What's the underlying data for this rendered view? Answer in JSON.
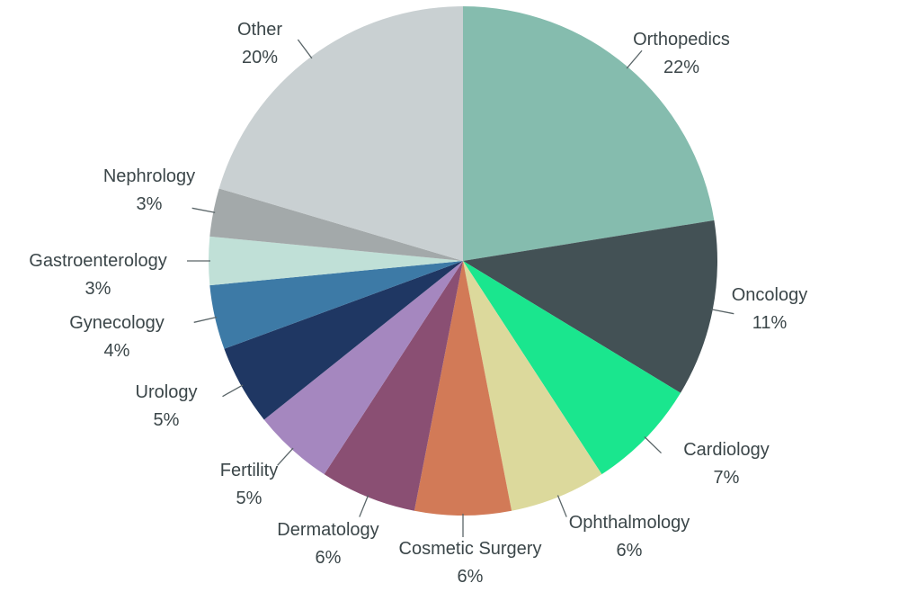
{
  "chart_data": {
    "type": "pie",
    "start": "top",
    "direction": "clockwise",
    "slices": [
      {
        "label": "Orthopedics",
        "value": 22,
        "value_label": "22%",
        "color": "#85bcae"
      },
      {
        "label": "Oncology",
        "value": 11,
        "value_label": "11%",
        "color": "#435155"
      },
      {
        "label": "Cardiology",
        "value": 7,
        "value_label": "7%",
        "color": "#1ae68e"
      },
      {
        "label": "Ophthalmology",
        "value": 6,
        "value_label": "6%",
        "color": "#dcd99c"
      },
      {
        "label": "Cosmetic Surgery",
        "value": 6,
        "value_label": "6%",
        "color": "#d27a57"
      },
      {
        "label": "Dermatology",
        "value": 6,
        "value_label": "6%",
        "color": "#8a4f73"
      },
      {
        "label": "Fertility",
        "value": 5,
        "value_label": "5%",
        "color": "#a587bf"
      },
      {
        "label": "Urology",
        "value": 5,
        "value_label": "5%",
        "color": "#1f3763"
      },
      {
        "label": "Gynecology",
        "value": 4,
        "value_label": "4%",
        "color": "#3d7aa6"
      },
      {
        "label": "Gastroenterology",
        "value": 3,
        "value_label": "3%",
        "color": "#c0e0d7"
      },
      {
        "label": "Nephrology",
        "value": 3,
        "value_label": "3%",
        "color": "#a3a9aa"
      },
      {
        "label": "Other",
        "value": 20,
        "value_label": "20%",
        "color": "#c9d0d2"
      }
    ]
  }
}
